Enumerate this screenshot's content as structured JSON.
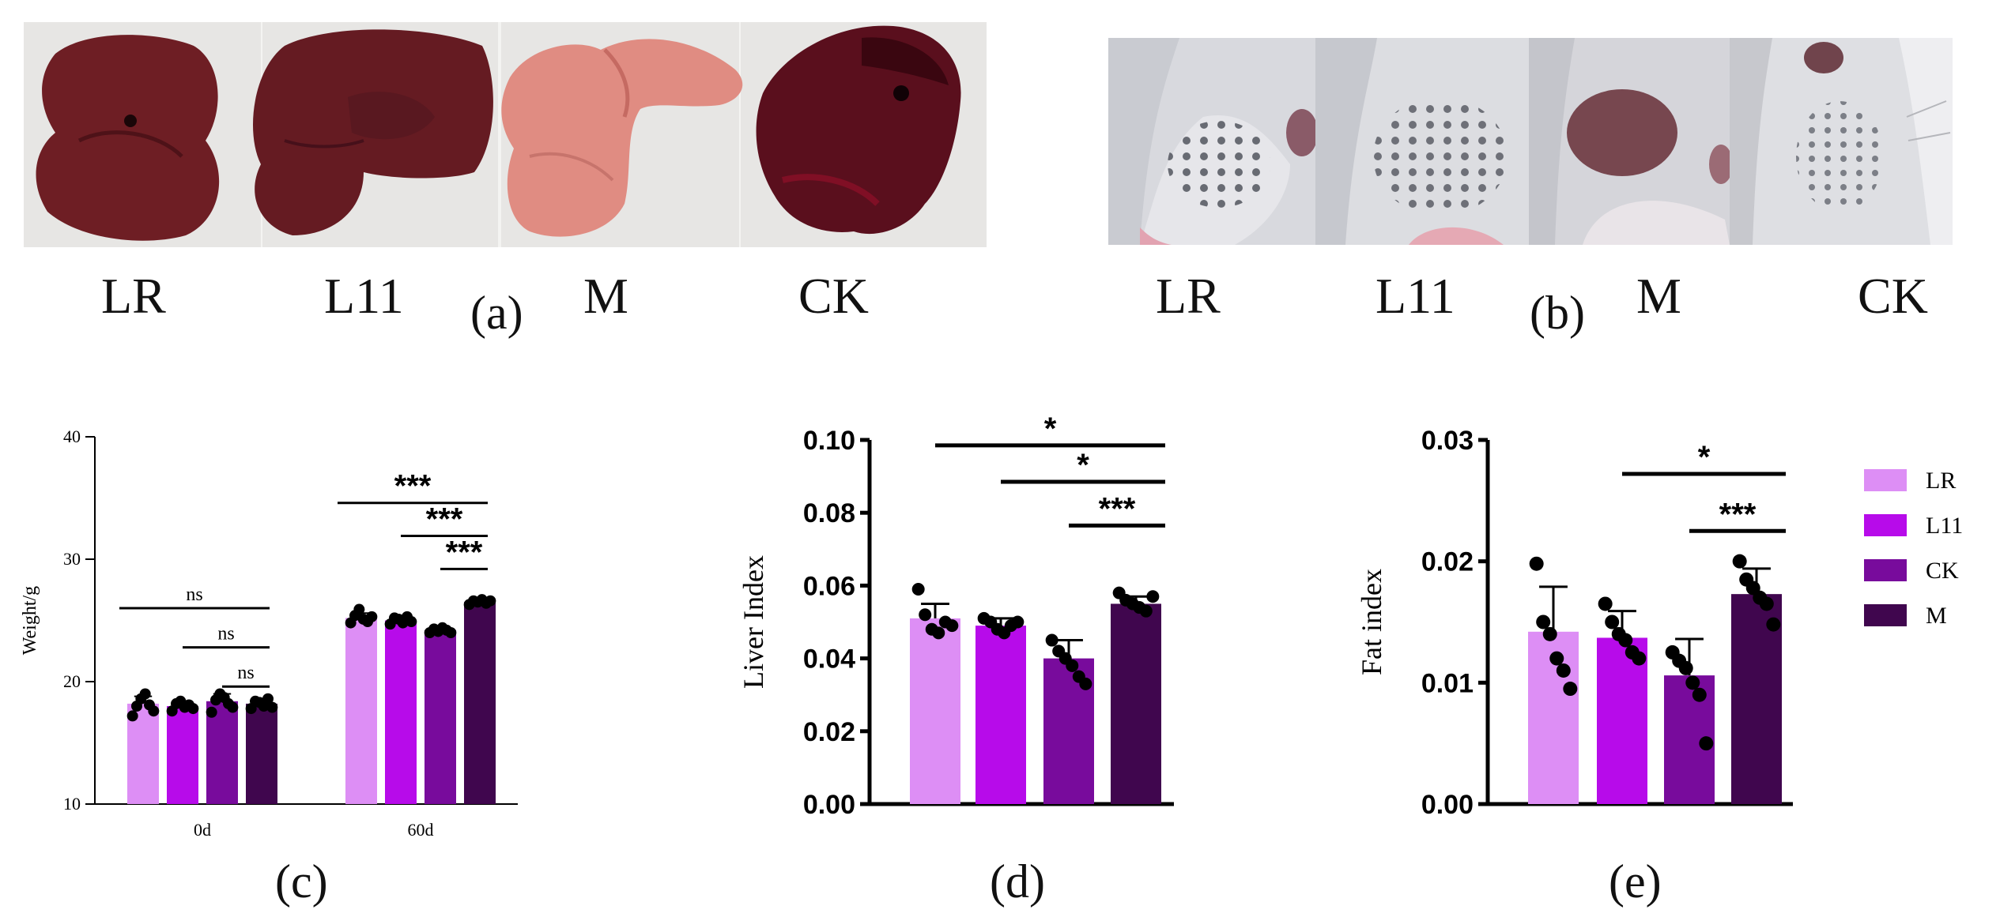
{
  "panels": {
    "a": {
      "tag": "(a)",
      "labels": [
        "LR",
        "L11",
        "M",
        "CK"
      ],
      "photo_names": [
        "liver-photo-lr",
        "liver-photo-l11",
        "liver-photo-m",
        "liver-photo-ck"
      ]
    },
    "b": {
      "tag": "(b)",
      "labels": [
        "LR",
        "L11",
        "M",
        "CK"
      ],
      "photo_names": [
        "skin-photo-lr",
        "skin-photo-l11",
        "skin-photo-m",
        "skin-photo-ck"
      ]
    },
    "c": {
      "tag": "(c)"
    },
    "d": {
      "tag": "(d)"
    },
    "e": {
      "tag": "(e)"
    }
  },
  "colors": {
    "LR": "#dd8ef5",
    "L11": "#b70bea",
    "CK": "#780b9c",
    "M": "#40064e"
  },
  "chart_data": [
    {
      "id": "weight",
      "type": "bar",
      "title": "",
      "xlabel": "",
      "ylabel": "Weight/g",
      "ylim": [
        10,
        40
      ],
      "yticks": [
        10,
        20,
        30,
        40
      ],
      "categories": [
        "0d",
        "60d"
      ],
      "series": [
        {
          "name": "LR",
          "values": [
            18.2,
            25.2
          ],
          "err": [
            0.6,
            0.4
          ],
          "points": [
            [
              17.2,
              18.0,
              18.6,
              19.0,
              18.1,
              17.6
            ],
            [
              24.8,
              25.4,
              25.9,
              25.1,
              24.9,
              25.3
            ]
          ]
        },
        {
          "name": "L11",
          "values": [
            18.0,
            25.0
          ],
          "err": [
            0.4,
            0.3
          ],
          "points": [
            [
              17.6,
              18.2,
              18.4,
              17.9,
              18.1,
              17.8
            ],
            [
              24.7,
              25.2,
              25.1,
              24.8,
              25.3,
              24.9
            ]
          ]
        },
        {
          "name": "CK",
          "values": [
            18.4,
            24.2
          ],
          "err": [
            0.6,
            0.2
          ],
          "points": [
            [
              17.5,
              18.5,
              19.0,
              18.7,
              18.2,
              17.9
            ],
            [
              24.0,
              24.3,
              24.1,
              24.4,
              24.2,
              24.0
            ]
          ]
        },
        {
          "name": "M",
          "values": [
            18.2,
            26.5
          ],
          "err": [
            0.4,
            0.2
          ],
          "points": [
            [
              17.8,
              18.4,
              18.3,
              18.0,
              18.6,
              17.9
            ],
            [
              26.3,
              26.6,
              26.5,
              26.7,
              26.4,
              26.6
            ]
          ]
        }
      ],
      "significance": [
        {
          "text": "ns",
          "group": 0,
          "from": "LR",
          "to": "M",
          "level": 26.0
        },
        {
          "text": "ns",
          "group": 0,
          "from": "L11",
          "to": "M",
          "level": 22.8
        },
        {
          "text": "ns",
          "group": 0,
          "from": "CK",
          "to": "M",
          "level": 19.6
        },
        {
          "text": "***",
          "group": 1,
          "from": "LR",
          "to": "M",
          "level": 34.6
        },
        {
          "text": "***",
          "group": 1,
          "from": "L11",
          "to": "M",
          "level": 31.9
        },
        {
          "text": "***",
          "group": 1,
          "from": "CK",
          "to": "M",
          "level": 29.2
        }
      ]
    },
    {
      "id": "liver",
      "type": "bar",
      "title": "",
      "xlabel": "",
      "ylabel": "Liver Index",
      "ylim": [
        0,
        0.1
      ],
      "yticks": [
        "0.00",
        "0.02",
        "0.04",
        "0.06",
        "0.08",
        "0.10"
      ],
      "categories": [
        "LR",
        "L11",
        "CK",
        "M"
      ],
      "values": [
        0.051,
        0.049,
        0.04,
        0.055
      ],
      "err": [
        0.004,
        0.002,
        0.005,
        0.002
      ],
      "points": [
        [
          0.059,
          0.052,
          0.048,
          0.047,
          0.05,
          0.049
        ],
        [
          0.051,
          0.05,
          0.048,
          0.047,
          0.049,
          0.05
        ],
        [
          0.045,
          0.042,
          0.04,
          0.038,
          0.035,
          0.033
        ],
        [
          0.058,
          0.056,
          0.055,
          0.054,
          0.053,
          0.057
        ]
      ],
      "significance": [
        {
          "text": "*",
          "from": "LR",
          "to": "M",
          "level": 0.0985
        },
        {
          "text": "*",
          "from": "L11",
          "to": "M",
          "level": 0.0885
        },
        {
          "text": "***",
          "from": "CK",
          "to": "M",
          "level": 0.0765
        }
      ]
    },
    {
      "id": "fat",
      "type": "bar",
      "title": "",
      "xlabel": "",
      "ylabel": "Fat index",
      "ylim": [
        0,
        0.03
      ],
      "yticks": [
        "0.00",
        "0.01",
        "0.02",
        "0.03"
      ],
      "categories": [
        "LR",
        "L11",
        "CK",
        "M"
      ],
      "values": [
        0.0142,
        0.0137,
        0.0106,
        0.0173
      ],
      "err": [
        0.0037,
        0.0022,
        0.003,
        0.0021
      ],
      "points": [
        [
          0.0198,
          0.015,
          0.014,
          0.012,
          0.011,
          0.0095
        ],
        [
          0.0165,
          0.015,
          0.014,
          0.0135,
          0.0125,
          0.012
        ],
        [
          0.0125,
          0.0118,
          0.0112,
          0.01,
          0.009,
          0.005
        ],
        [
          0.02,
          0.0185,
          0.0178,
          0.017,
          0.0165,
          0.0148
        ]
      ],
      "significance": [
        {
          "text": "*",
          "from": "L11",
          "to": "M",
          "level": 0.0272
        },
        {
          "text": "***",
          "from": "CK",
          "to": "M",
          "level": 0.0225
        }
      ]
    }
  ],
  "legend": [
    {
      "name": "LR",
      "label": "LR"
    },
    {
      "name": "L11",
      "label": "L11"
    },
    {
      "name": "CK",
      "label": "CK"
    },
    {
      "name": "M",
      "label": "M"
    }
  ]
}
